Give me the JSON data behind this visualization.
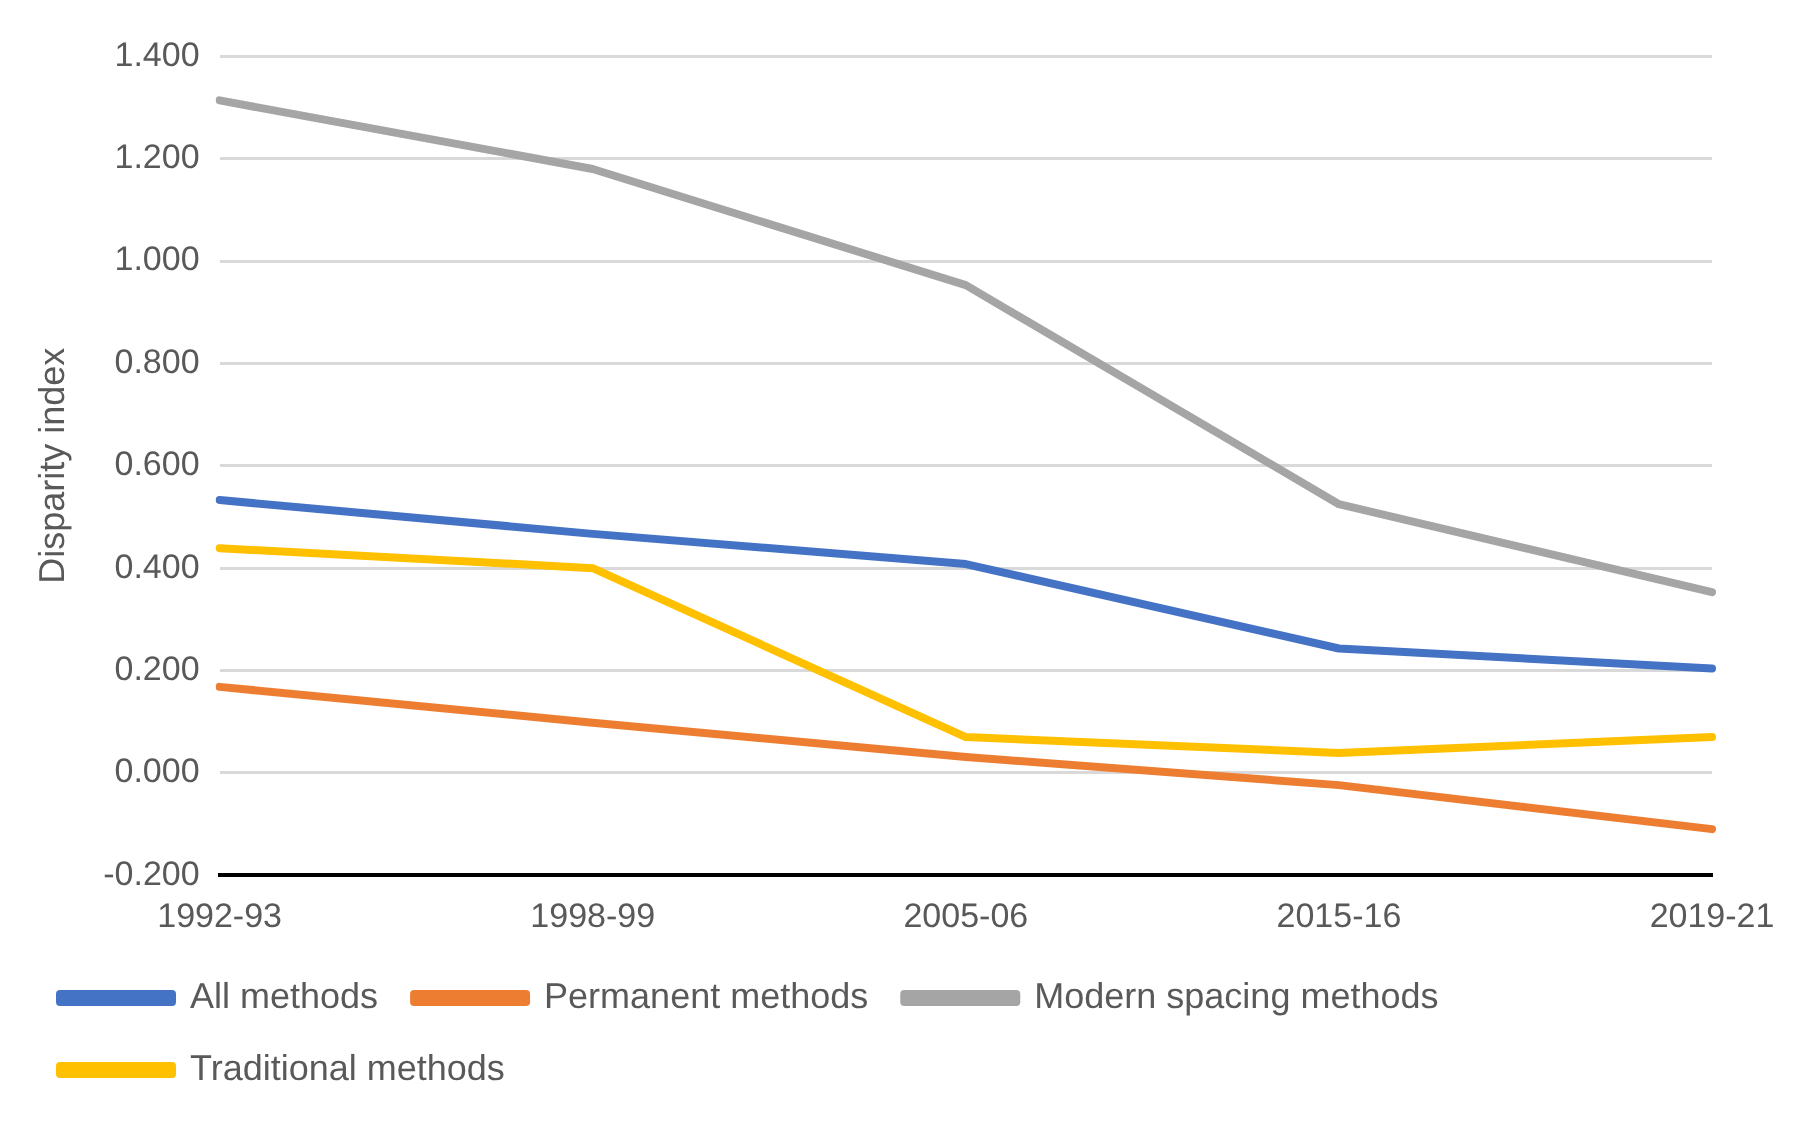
{
  "chart_data": {
    "type": "line",
    "ylabel": "Disparity index",
    "categories": [
      "1992-93",
      "1998-99",
      "2005-06",
      "2015-16",
      "2019-21"
    ],
    "series": [
      {
        "name": "All methods",
        "color": "#4472c4",
        "values": [
          0.533,
          0.467,
          0.408,
          0.243,
          0.204
        ]
      },
      {
        "name": "Permanent methods",
        "color": "#ed7d31",
        "values": [
          0.168,
          0.098,
          0.031,
          -0.024,
          -0.11
        ]
      },
      {
        "name": "Modern spacing methods",
        "color": "#a5a5a5",
        "values": [
          1.314,
          1.18,
          0.953,
          0.525,
          0.353
        ]
      },
      {
        "name": "Traditional methods",
        "color": "#ffc000",
        "values": [
          0.439,
          0.4,
          0.07,
          0.039,
          0.07
        ]
      }
    ],
    "ylim": [
      -0.2,
      1.4
    ],
    "yticks": [
      {
        "value": -0.2,
        "label": "-0.200"
      },
      {
        "value": 0,
        "label": "0.000"
      },
      {
        "value": 0.2,
        "label": "0.200"
      },
      {
        "value": 0.4,
        "label": "0.400"
      },
      {
        "value": 0.6,
        "label": "0.600"
      },
      {
        "value": 0.8,
        "label": "0.800"
      },
      {
        "value": 1,
        "label": "1.000"
      },
      {
        "value": 1.2,
        "label": "1.200"
      },
      {
        "value": 1.4,
        "label": "1.400"
      }
    ],
    "grid": "y",
    "legend": "bottom",
    "marker": "none",
    "line_style": "solid"
  }
}
